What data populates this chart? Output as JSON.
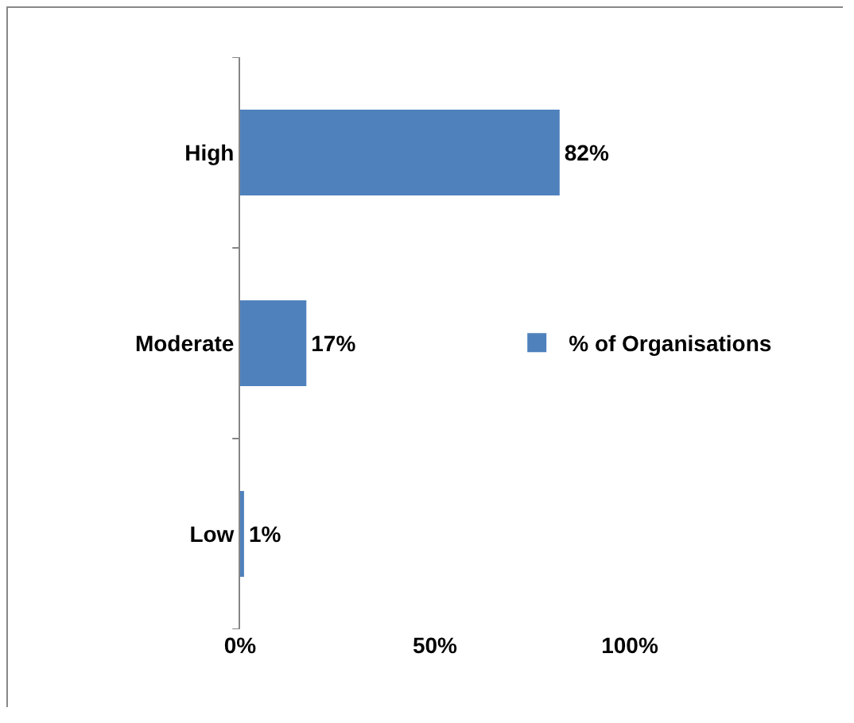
{
  "chart_data": {
    "type": "bar",
    "orientation": "horizontal",
    "categories": [
      "High",
      "Moderate",
      "Low"
    ],
    "series": [
      {
        "name": "% of Organisations",
        "color": "#4f81bd",
        "values": [
          82,
          17,
          1
        ],
        "value_labels": [
          "82%",
          "17%",
          "1%"
        ]
      }
    ],
    "xlim": [
      0,
      100
    ],
    "xticks": [
      {
        "value": 0,
        "label": "0%"
      },
      {
        "value": 50,
        "label": "50%"
      },
      {
        "value": 100,
        "label": "100%"
      }
    ],
    "grid": false,
    "legend": "right"
  }
}
